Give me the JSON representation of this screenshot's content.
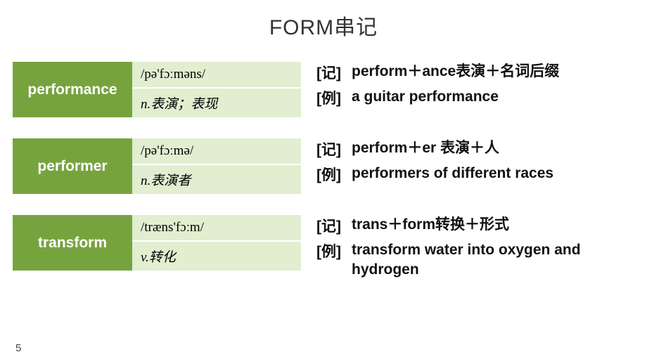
{
  "title": "FORM串记",
  "pageNumber": "5",
  "colors": {
    "wordBg": "#77a33f",
    "detailBg": "#e1eed0",
    "pageBg": "#ffffff"
  },
  "entries": [
    {
      "word": "performance",
      "phonetic": "/pə'fɔːməns/",
      "definition": "n.表演；表现",
      "mnemonicLabel": "[记]",
      "mnemonic": "perform＋ance表演＋名词后缀",
      "exampleLabel": "[例]",
      "example": "a  guitar  performance"
    },
    {
      "word": "performer",
      "phonetic": "/pə'fɔːmə/",
      "definition": "n.表演者",
      "mnemonicLabel": "[记]",
      "mnemonic": "perform＋er 表演＋人",
      "exampleLabel": "[例]",
      "example": "performers  of  different races"
    },
    {
      "word": "transform",
      "phonetic": "/træns'fɔːm/",
      "definition": "v.转化",
      "mnemonicLabel": "[记]",
      "mnemonic": "trans＋form转换＋形式",
      "exampleLabel": "[例]",
      "example": "transform  water  into oxygen  and hydrogen"
    }
  ]
}
